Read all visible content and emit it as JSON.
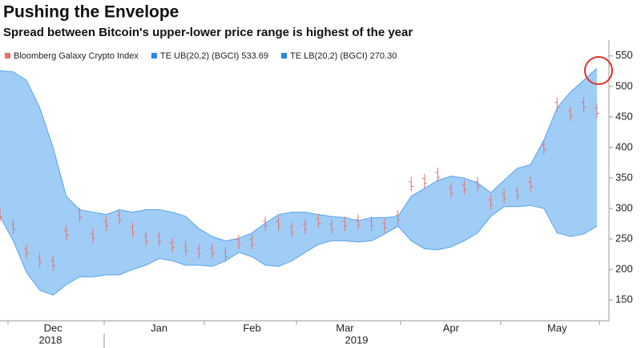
{
  "chart_data": {
    "type": "band",
    "title": "Pushing the Envelope",
    "subtitle": "Spread between Bitcoin's upper-lower price range is highest of the year",
    "categories": [
      null,
      null,
      null,
      null,
      "Dec",
      null,
      null,
      null,
      null,
      null,
      null,
      null,
      "Jan",
      null,
      null,
      null,
      null,
      null,
      null,
      "Feb",
      null,
      null,
      null,
      null,
      null,
      null,
      "Mar",
      null,
      null,
      null,
      null,
      null,
      null,
      null,
      "Apr",
      null,
      null,
      null,
      null,
      null,
      null,
      null,
      "May",
      null,
      null,
      null
    ],
    "years": [
      "2018",
      "2019"
    ],
    "series": [
      {
        "name": "Bloomberg Galaxy Crypto Index",
        "color": "#e8706c",
        "values": [
          290,
          270,
          230,
          215,
          210,
          260,
          290,
          255,
          275,
          285,
          265,
          250,
          250,
          240,
          235,
          230,
          230,
          225,
          245,
          245,
          275,
          275,
          265,
          270,
          280,
          270,
          275,
          278,
          275,
          272,
          285,
          340,
          345,
          355,
          330,
          335,
          340,
          310,
          320,
          325,
          340,
          400,
          470,
          455,
          470,
          460
        ]
      },
      {
        "name": "TE UB(20,2) (BGCI) 533.69",
        "color": "#2a86e6",
        "values": [
          526,
          524,
          510,
          465,
          400,
          320,
          298,
          294,
          290,
          298,
          294,
          298,
          298,
          294,
          287,
          267,
          254,
          247,
          251,
          260,
          276,
          290,
          294,
          294,
          290,
          287,
          285,
          280,
          285,
          285,
          287,
          320,
          333,
          346,
          353,
          350,
          342,
          326,
          346,
          366,
          372,
          412,
          465,
          491,
          510,
          530
        ]
      },
      {
        "name": "TE LB(20,2) (BGCI) 270.30",
        "color": "#2a86e6",
        "values": [
          287,
          247,
          195,
          166,
          158,
          175,
          188,
          188,
          191,
          191,
          200,
          207,
          218,
          214,
          207,
          207,
          205,
          214,
          228,
          221,
          207,
          205,
          214,
          228,
          241,
          247,
          247,
          245,
          247,
          258,
          271,
          247,
          234,
          232,
          237,
          247,
          260,
          287,
          303,
          303,
          305,
          300,
          260,
          254,
          258,
          271
        ]
      }
    ],
    "band_fill": "#9fcdf6",
    "ylim": [
      116,
      576
    ],
    "yticks": [
      150,
      200,
      250,
      300,
      350,
      400,
      450,
      500,
      550
    ]
  }
}
